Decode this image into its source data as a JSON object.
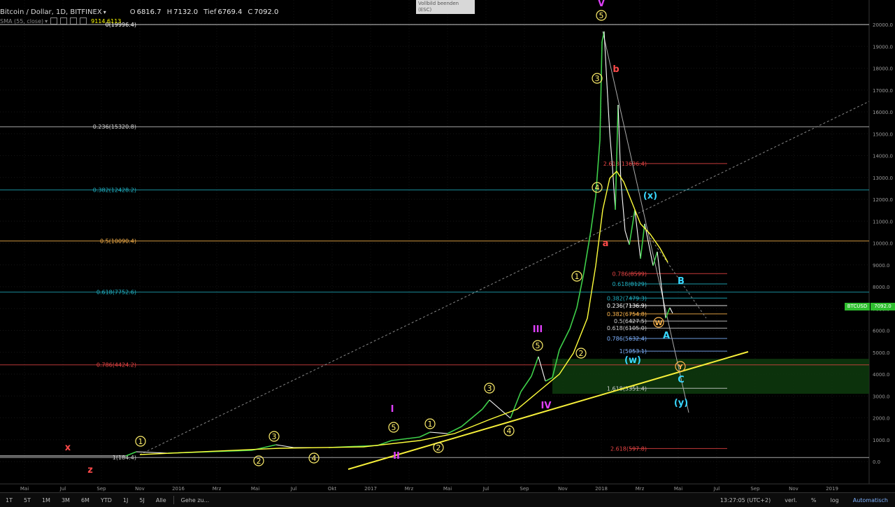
{
  "header": {
    "symbol": "Bitcoin / Dollar, 1D, BITFINEX",
    "open_label": "O",
    "open": "6816.7",
    "high_label": "H",
    "high": "7132.0",
    "low_label": "Tief",
    "low": "6769.4",
    "close_label": "C",
    "close": "7092.0",
    "ma_label": "SMA (55, close)",
    "ma_value": "9114.6113"
  },
  "fullscreen_exit": {
    "line1": "Vollbild beenden",
    "line2": "(ESC)"
  },
  "price_tags": {
    "symbol": "BTCUSD",
    "last": "7092.0"
  },
  "bottom_bar": {
    "timeframes": [
      "1T",
      "5T",
      "1M",
      "3M",
      "6M",
      "YTD",
      "1J",
      "5J",
      "Alle"
    ],
    "goto": "Gehe zu...",
    "clock": "13:27:05 (UTC+2)",
    "adj": "verl.",
    "pct": "%",
    "log": "log",
    "auto": "Automatisch"
  },
  "colors": {
    "candle_up": "#3ecf4a",
    "candle_down": "#ffffff",
    "ma": "#ffff3b",
    "fib_white": "#ffffff",
    "fib_teal": "#21b2c4",
    "fib_orange": "#ffb74d",
    "fib_red": "#e84545",
    "trendline": "#f7f03a",
    "zone": "#0e3b0e",
    "wave_yellow": "#ffef6b",
    "wave_magenta": "#e040fb",
    "wave_red": "#ff4a4a",
    "wave_cyan": "#38d7ff"
  },
  "chart_data": {
    "type": "candlestick",
    "title": "Bitcoin / Dollar, 1D, BITFINEX",
    "y_axis": {
      "scale": "log",
      "side": "right",
      "ticks": [
        "20000.0",
        "19000.0",
        "18000.0",
        "17000.0",
        "16000.0",
        "15000.0",
        "14000.0",
        "13000.0",
        "12000.0",
        "11000.0",
        "10000.0",
        "9000.0",
        "8000.0",
        "7000.0",
        "6000.0",
        "5000.0",
        "4000.0",
        "3000.0",
        "2000.0",
        "1000.0",
        "0.0"
      ]
    },
    "x_axis": {
      "ticks": [
        "Mai",
        "Jul",
        "Sep",
        "Nov",
        "2016",
        "Mrz",
        "Mai",
        "Jul",
        "Okt",
        "2017",
        "Mrz",
        "Mai",
        "Jul",
        "Sep",
        "Nov",
        "2018",
        "Mrz",
        "Mai",
        "Jul",
        "Sep",
        "Nov",
        "2019"
      ]
    },
    "price_path": [
      [
        "2015-05",
        237
      ],
      [
        "2015-08",
        230
      ],
      [
        "2015-11",
        380
      ],
      [
        "2016-01",
        430
      ],
      [
        "2016-06",
        700
      ],
      [
        "2016-08",
        580
      ],
      [
        "2016-12",
        780
      ],
      [
        "2017-01",
        1000
      ],
      [
        "2017-03",
        1200
      ],
      [
        "2017-05",
        2000
      ],
      [
        "2017-06",
        2800
      ],
      [
        "2017-07",
        1900
      ],
      [
        "2017-08",
        4400
      ],
      [
        "2017-09",
        3000
      ],
      [
        "2017-10",
        6000
      ],
      [
        "2017-11",
        9500
      ],
      [
        "2017-12",
        19800
      ],
      [
        "2018-01",
        11000
      ],
      [
        "2018-02",
        7000
      ],
      [
        "2018-03",
        11500
      ],
      [
        "2018-04",
        6600
      ],
      [
        "2018-04-12",
        7092
      ]
    ],
    "moving_average": {
      "name": "SMA (55, close)",
      "last": 9114.6113
    },
    "fib_levels_major": [
      {
        "label": "0(19996.4)",
        "value": 19996.4,
        "color": "#ffffff"
      },
      {
        "label": "0.236(15320.8)",
        "value": 15320.8,
        "color": "#cfcfcf"
      },
      {
        "label": "0.382(12428.2)",
        "value": 12428.2,
        "color": "#21b2c4"
      },
      {
        "label": "0.5(10090.4)",
        "value": 10090.4,
        "color": "#ffb74d"
      },
      {
        "label": "0.618(7752.6)",
        "value": 7752.6,
        "color": "#21b2c4"
      },
      {
        "label": "0.786(4424.2)",
        "value": 4424.2,
        "color": "#e84545"
      },
      {
        "label": "1(184.4)",
        "value": 184.4,
        "color": "#cfcfcf"
      }
    ],
    "fib_levels_minor": [
      {
        "label": "2.618(13636.4)",
        "value": 13636.4,
        "color": "#e84545"
      },
      {
        "label": "0.786(8599)",
        "value": 8599,
        "color": "#e84545"
      },
      {
        "label": "0.618(8129)",
        "value": 8129,
        "color": "#21b2c4"
      },
      {
        "label": "0.382(7479.3)",
        "value": 7479.3,
        "color": "#21b2c4"
      },
      {
        "label": "0.236(7136.9)",
        "value": 7136.9,
        "color": "#ffffff"
      },
      {
        "label": "0.382(6754.8)",
        "value": 6754.8,
        "color": "#ffb74d"
      },
      {
        "label": "0.5(6427.5)",
        "value": 6427.5,
        "color": "#cfcfcf"
      },
      {
        "label": "0.618(6105.0)",
        "value": 6105.0,
        "color": "#cfcfcf"
      },
      {
        "label": "0.786(5632.4)",
        "value": 5632.4,
        "color": "#7fb2ff"
      },
      {
        "label": "1(5053.1)",
        "value": 5053.1,
        "color": "#7fb2ff"
      },
      {
        "label": "1.618(3351.4)",
        "value": 3351.4,
        "color": "#cfcfcf"
      },
      {
        "label": "2.618(597.8)",
        "value": 597.8,
        "color": "#e84545"
      }
    ],
    "wave_labels": [
      {
        "text": "x",
        "color": "#ff4a4a"
      },
      {
        "text": "z",
        "color": "#ff4a4a"
      },
      {
        "text": "1",
        "color": "#ffef6b",
        "circle": true
      },
      {
        "text": "2",
        "color": "#ffef6b",
        "circle": true
      },
      {
        "text": "3",
        "color": "#ffef6b",
        "circle": true
      },
      {
        "text": "4",
        "color": "#ffef6b",
        "circle": true
      },
      {
        "text": "5",
        "color": "#ffef6b",
        "circle": true
      },
      {
        "text": "I",
        "color": "#e040fb"
      },
      {
        "text": "II",
        "color": "#e040fb"
      },
      {
        "text": "III",
        "color": "#e040fb"
      },
      {
        "text": "IV",
        "color": "#e040fb"
      },
      {
        "text": "V",
        "color": "#e040fb"
      },
      {
        "text": "a",
        "color": "#ff4a4a"
      },
      {
        "text": "b",
        "color": "#ff4a4a"
      },
      {
        "text": "(x)",
        "color": "#38d7ff"
      },
      {
        "text": "(w)",
        "color": "#38d7ff"
      },
      {
        "text": "(y)",
        "color": "#38d7ff"
      },
      {
        "text": "A",
        "color": "#38d7ff"
      },
      {
        "text": "B",
        "color": "#38d7ff"
      },
      {
        "text": "C",
        "color": "#38d7ff"
      },
      {
        "text": "Y",
        "color": "#ffb74d",
        "circle": true
      },
      {
        "text": "W",
        "color": "#ffb74d",
        "circle": true
      }
    ],
    "support_zone": {
      "low": 3100,
      "high": 4700
    },
    "grid": true,
    "legend": "top-left"
  }
}
